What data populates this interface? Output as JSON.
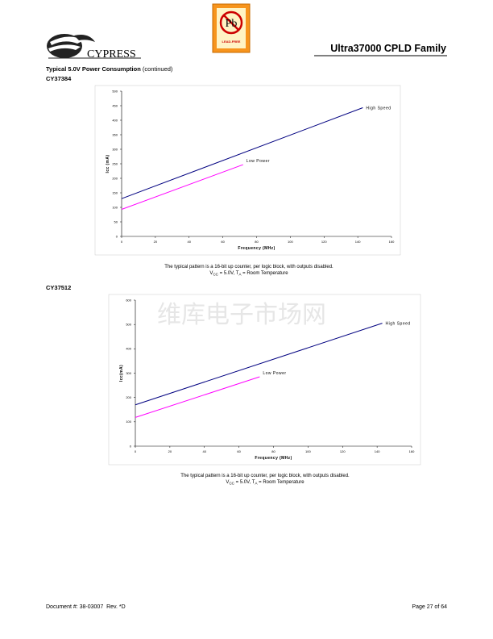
{
  "header": {
    "logo_text": "CYPRESS",
    "badge_symbol": "Pb",
    "badge_text": "LEAD-FREE",
    "title": "Ultra37000 CPLD Family"
  },
  "section": {
    "title": "Typical 5.0V Power Consumption",
    "title_note": "(continued)"
  },
  "watermark": "维库电子市场网",
  "chart_data": [
    {
      "type": "line",
      "title": "CY37384",
      "xlabel": "Frequency (MHz)",
      "ylabel": "Icc (mA)",
      "xlim": [
        0,
        160
      ],
      "xticks": [
        0,
        20,
        40,
        60,
        80,
        100,
        120,
        140,
        160
      ],
      "ylim": [
        0,
        500
      ],
      "yticks": [
        0,
        50,
        100,
        150,
        200,
        250,
        300,
        350,
        400,
        450,
        500
      ],
      "series": [
        {
          "name": "High Speed",
          "color": "#000080",
          "x": [
            0,
            143
          ],
          "values": [
            130,
            443
          ]
        },
        {
          "name": "Low Power",
          "color": "#ff00ff",
          "x": [
            0,
            72
          ],
          "values": [
            93,
            247
          ]
        }
      ],
      "caption": "The typical pattern is a 16-bit up counter, per logic block, with outputs disabled.",
      "condition": [
        "V",
        "CC",
        " = 5.0V, T",
        "A",
        " = Room Temperature"
      ]
    },
    {
      "type": "line",
      "title": "CY37512",
      "xlabel": "Frequency (MHz)",
      "ylabel": "Icc(mA)",
      "xlim": [
        0,
        160
      ],
      "xticks": [
        0,
        20,
        40,
        60,
        80,
        100,
        120,
        140,
        160
      ],
      "ylim": [
        0,
        600
      ],
      "yticks": [
        0,
        100,
        200,
        300,
        400,
        500,
        600
      ],
      "series": [
        {
          "name": "High Speed",
          "color": "#000080",
          "x": [
            0,
            143
          ],
          "values": [
            170,
            505
          ]
        },
        {
          "name": "Low Power",
          "color": "#ff00ff",
          "x": [
            0,
            72
          ],
          "values": [
            118,
            285
          ]
        }
      ],
      "caption": "The typical pattern is a 16-bit up counter, per logic block, with outputs disabled.",
      "condition": [
        "V",
        "CC",
        " = 5.0V, T",
        "A",
        " = Room Temperature"
      ]
    }
  ],
  "footer": {
    "document": "Document #: 38-03007  Rev. *D",
    "page": "Page 27 of 64"
  }
}
